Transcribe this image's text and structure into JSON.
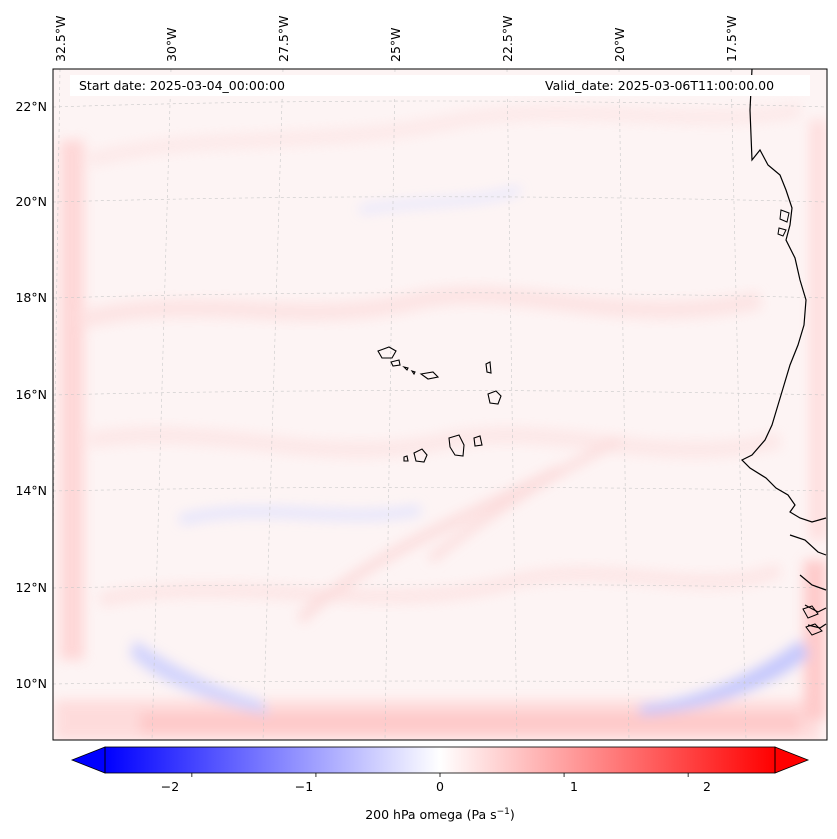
{
  "map": {
    "start_date_label": "Start date: 2025-03-04_00:00:00",
    "valid_date_label": "Valid_date: 2025-03-06T11:00:00.00",
    "lon_labels": [
      "32.5°W",
      "30°W",
      "27.5°W",
      "25°W",
      "22.5°W",
      "20°W",
      "17.5°W"
    ],
    "lat_labels": [
      "22°N",
      "20°N",
      "18°N",
      "16°N",
      "14°N",
      "12°N",
      "10°N"
    ],
    "extent": {
      "lon_min": -33.0,
      "lon_max": -15.5,
      "lat_min": 8.9,
      "lat_max": 22.7
    }
  },
  "colorbar": {
    "label": "200 hPa omega (Pa s",
    "label_sup": "−1",
    "label_close": ")",
    "ticks": [
      "−2",
      "−1",
      "0",
      "1",
      "2"
    ],
    "tick_values": [
      -2,
      -1,
      0,
      1,
      2
    ],
    "range": [
      -2.7,
      2.7
    ],
    "low_color": "#0000ff",
    "mid_color": "#ffffff",
    "high_color": "#ff0000"
  }
}
